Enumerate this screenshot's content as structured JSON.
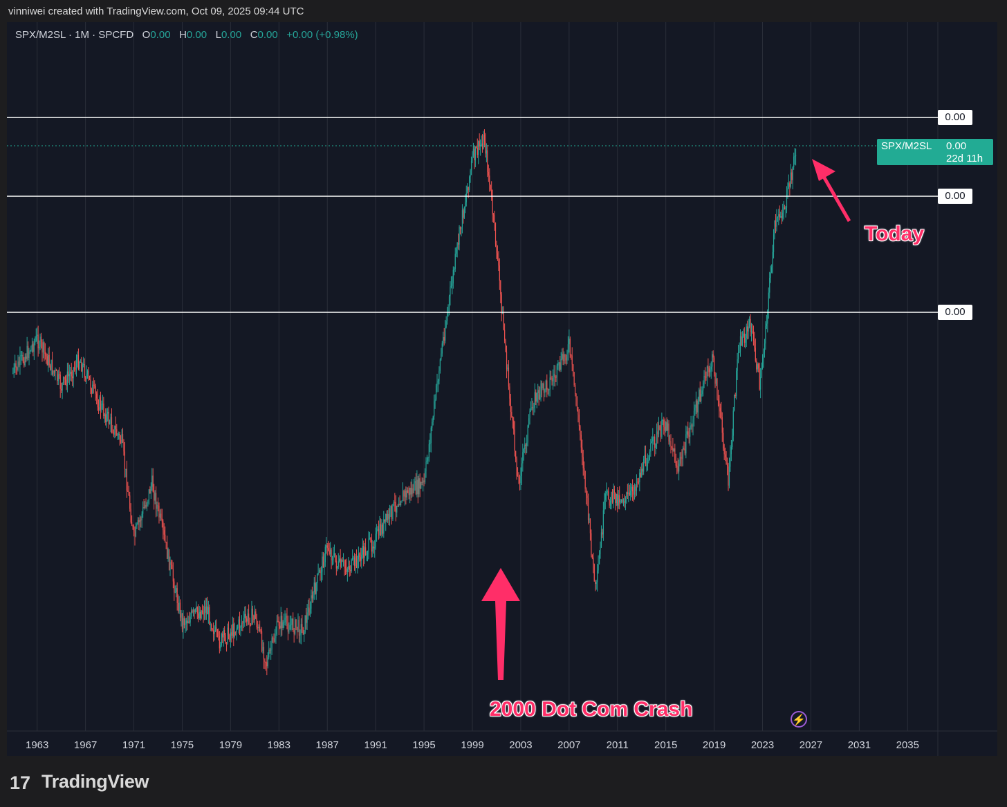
{
  "header": {
    "created_text": "vinniwei created with TradingView.com, Oct 09, 2025 09:44 UTC"
  },
  "legend": {
    "symbol_text": "SPX/M2SL · 1M · SPCFD",
    "o_label": "O",
    "o_value": "0.00",
    "h_label": "H",
    "h_value": "0.00",
    "l_label": "L",
    "l_value": "0.00",
    "c_label": "C",
    "c_value": "0.00",
    "change": "+0.00 (+0.98%)"
  },
  "price_labels": [
    "0.00",
    "0.00",
    "0.00"
  ],
  "last_price_tag": {
    "symbol": "SPX/M2SL",
    "value": "0.00",
    "countdown": "22d 11h"
  },
  "annotations": {
    "today": "Today",
    "crash": "2000 Dot Com Crash"
  },
  "footer": {
    "logo_mark": "17",
    "logo_text": "TradingView"
  },
  "colors": {
    "up": "#26a69a",
    "down": "#ef5350",
    "annotation": "#ff2e68",
    "background": "#141824",
    "gridline": "#2a2e39",
    "horizontal_lines": "#ffffff"
  },
  "chart_data": {
    "type": "line",
    "title": "",
    "style": "candlestick",
    "series": [
      {
        "name": "SPX/M2SL",
        "x": [
          1961,
          1963,
          1965,
          1966.5,
          1968,
          1970,
          1971,
          1972.5,
          1974,
          1975,
          1977,
          1978,
          1980,
          1981,
          1982,
          1983,
          1985,
          1987,
          1987.9,
          1989,
          1991,
          1993,
          1995,
          1996.5,
          1998,
          1999,
          2000,
          2001,
          2002,
          2002.8,
          2004,
          2006,
          2007,
          2008,
          2009.2,
          2010,
          2012,
          2014,
          2015,
          2016,
          2018,
          2018.9,
          2020.2,
          2021,
          2022,
          2022.8,
          2024,
          2025,
          2025.8
        ],
        "y": [
          540,
          490,
          560,
          520,
          580,
          640,
          780,
          700,
          820,
          900,
          880,
          930,
          900,
          890,
          960,
          900,
          910,
          790,
          820,
          820,
          780,
          720,
          700,
          500,
          330,
          230,
          200,
          360,
          560,
          700,
          580,
          540,
          500,
          640,
          860,
          720,
          720,
          640,
          610,
          680,
          560,
          520,
          700,
          500,
          470,
          560,
          330,
          290,
          212
        ]
      }
    ],
    "xticks": [
      "1963",
      "1967",
      "1971",
      "1975",
      "1979",
      "1983",
      "1987",
      "1991",
      "1995",
      "1999",
      "2003",
      "2007",
      "2011",
      "2015",
      "2019",
      "2023",
      "2027",
      "2031",
      "2035"
    ],
    "xlim": [
      1960.5,
      2037.5
    ],
    "horizontal_levels": [
      "0.00",
      "0.00",
      "0.00"
    ],
    "grid": true,
    "legend": "top-left"
  }
}
